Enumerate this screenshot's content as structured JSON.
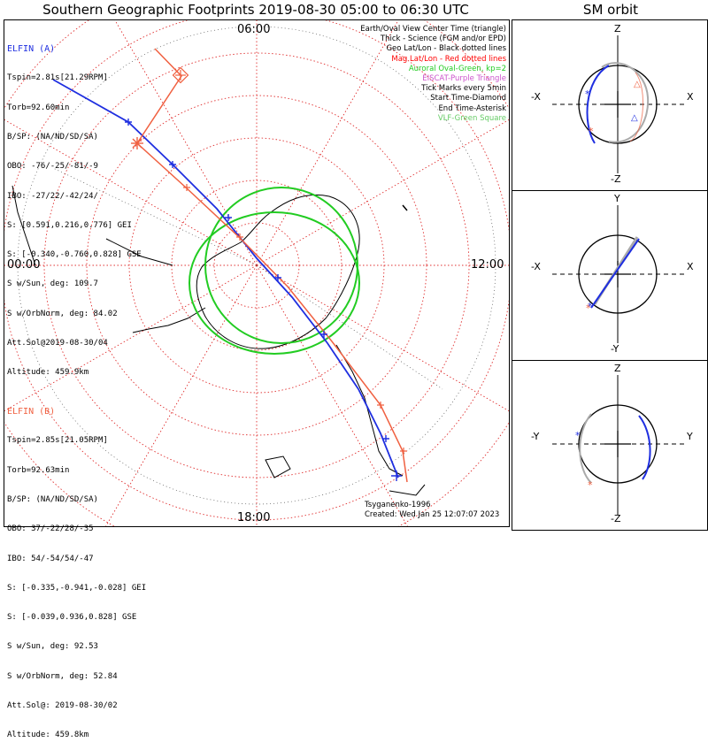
{
  "header": {
    "title": "Southern Geographic Footprints 2019-08-30 05:00 to 06:30 UTC",
    "sm_title": "SM orbit"
  },
  "time_labels": {
    "top": "06:00",
    "left": "00:00",
    "right": "12:00",
    "bottom": "18:00"
  },
  "elfin_a": {
    "name": "ELFIN (A)",
    "lines": [
      "Tspin=2.81s[21.29RPM]",
      "Torb=92.60min",
      "B/SP: (NA/ND/SD/SA)",
      "OBO: -76/-25/-81/-9",
      "IBO: -27/22/-42/24/",
      "S: [0.591,0.216,0.776] GEI",
      "S: [-0.340,-0.760,0.828] GSE",
      "S w/Sun, deg: 109.7",
      "S w/OrbNorm, deg: 84.02",
      "Att.Sol@2019-08-30/04",
      "Altitude: 459.9km"
    ]
  },
  "elfin_b": {
    "name": "ELFIN (B)",
    "lines": [
      "Tspin=2.85s[21.05RPM]",
      "Torb=92.63min",
      "B/SP: (NA/ND/SD/SA)",
      "OBO: 37/-22/28/-35",
      "IBO: 54/-54/54/-47",
      "S: [-0.335,-0.941,-0.028] GEI",
      "S: [-0.039,0.936,0.828] GSE",
      "S w/Sun, deg: 92.53",
      "S w/OrbNorm, deg: 52.84",
      "Att.Sol@: 2019-08-30/02",
      "Altitude: 459.8km"
    ]
  },
  "legend": [
    {
      "text": "Earth/Oval View Center Time (triangle)",
      "color": "#000000"
    },
    {
      "text": "Thick - Science (FGM and/or EPD)",
      "color": "#000000"
    },
    {
      "text": "Geo Lat/Lon - Black dotted lines",
      "color": "#000000"
    },
    {
      "text": "Mag Lat/Lon - Red dotted lines",
      "color": "#ff0000"
    },
    {
      "text": "Auroral Oval-Green, kp=2",
      "color": "#22cc22"
    },
    {
      "text": "EISCAT-Purple Triangle",
      "color": "#cc55cc"
    },
    {
      "text": "Tick Marks every 5min",
      "color": "#000000"
    },
    {
      "text": "Start Time-Diamond",
      "color": "#000000"
    },
    {
      "text": "End Time-Asterisk",
      "color": "#000000"
    },
    {
      "text": "VLF-Green Square",
      "color": "#66cc66"
    }
  ],
  "credit": {
    "author": "Tsyganenko-1996",
    "created": "Created: Wed Jan 25 12:07:07 2023"
  },
  "sm_panels": [
    {
      "top": "Z",
      "bottom": "-Z",
      "left": "-X",
      "right": "X"
    },
    {
      "top": "Y",
      "bottom": "-Y",
      "left": "-X",
      "right": "X"
    },
    {
      "top": "Z",
      "bottom": "-Z",
      "left": "-Y",
      "right": "Y"
    }
  ],
  "colors": {
    "elfin_a": "#1f2fe0",
    "elfin_b": "#f06040",
    "oval": "#22cc22",
    "mag_grid": "#e03030"
  }
}
